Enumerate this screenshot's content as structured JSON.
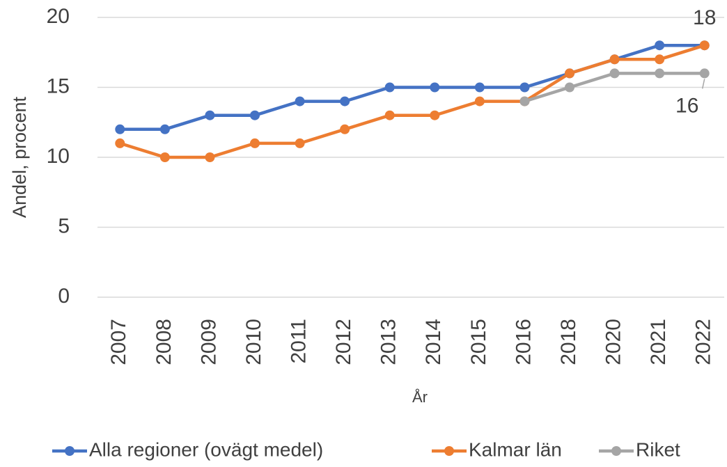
{
  "chart_data": {
    "type": "line",
    "y_label": "Andel, procent",
    "x_label": "År",
    "categories": [
      "2007",
      "2008",
      "2009",
      "2010",
      "2011",
      "2012",
      "2013",
      "2014",
      "2015",
      "2016",
      "2018",
      "2020",
      "2021",
      "2022"
    ],
    "series": [
      {
        "name": "Alla regioner (ovägt medel)",
        "color": "#4472c4",
        "values": [
          12,
          12,
          13,
          13,
          14,
          14,
          15,
          15,
          15,
          15,
          16,
          17,
          18,
          18
        ]
      },
      {
        "name": "Kalmar län",
        "color": "#ed7d31",
        "values": [
          11,
          10,
          10,
          11,
          11,
          12,
          13,
          13,
          14,
          14,
          16,
          17,
          17,
          18
        ]
      },
      {
        "name": "Riket",
        "color": "#a5a5a5",
        "values": [
          null,
          null,
          null,
          null,
          null,
          null,
          null,
          null,
          null,
          14,
          15,
          16,
          16,
          16
        ]
      }
    ],
    "ylim": [
      0,
      20
    ],
    "yticks": [
      0,
      5,
      10,
      15,
      20
    ],
    "grid": true,
    "legend": "bottom"
  }
}
